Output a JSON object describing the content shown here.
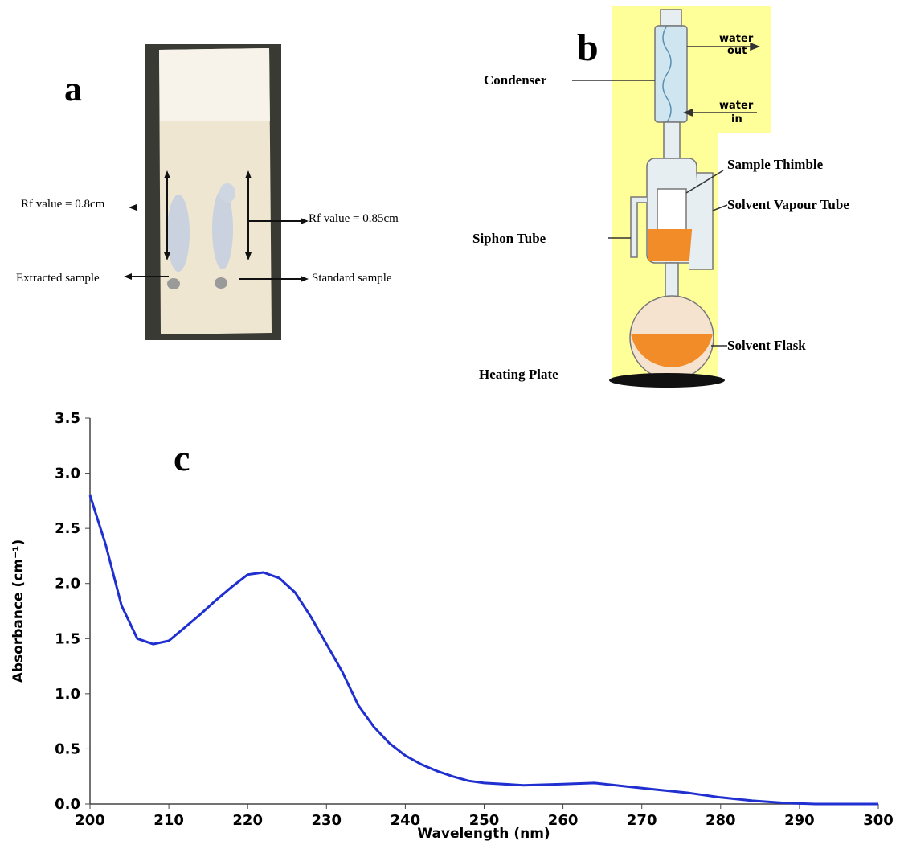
{
  "panels": {
    "a": {
      "label": "a",
      "rf_left": "Rf value = 0.8cm",
      "rf_right": "Rf value = 0.85cm",
      "extracted": "Extracted sample",
      "standard": "Standard sample"
    },
    "b": {
      "label": "b",
      "condenser": "Condenser",
      "water_out": [
        "water",
        "out"
      ],
      "water_in": [
        "water",
        "in"
      ],
      "sample_thimble": "Sample Thimble",
      "vapour_tube": "Solvent Vapour Tube",
      "siphon_tube": "Siphon Tube",
      "solvent_flask": "Solvent Flask",
      "heating_plate": "Heating Plate"
    }
  },
  "chart_data": {
    "type": "line",
    "panel_label": "c",
    "x_label": "Wavelength (nm)",
    "y_label": "Absorbance (cm⁻¹)",
    "color": "#1f2fd0",
    "x": [
      200,
      202,
      204,
      206,
      208,
      210,
      212,
      214,
      216,
      218,
      220,
      222,
      224,
      226,
      228,
      230,
      232,
      234,
      236,
      238,
      240,
      242,
      244,
      246,
      248,
      250,
      255,
      260,
      264,
      268,
      272,
      276,
      280,
      284,
      288,
      292,
      300
    ],
    "values": [
      2.8,
      2.35,
      1.8,
      1.5,
      1.45,
      1.48,
      1.6,
      1.72,
      1.85,
      1.97,
      2.08,
      2.1,
      2.05,
      1.92,
      1.7,
      1.45,
      1.2,
      0.9,
      0.7,
      0.55,
      0.44,
      0.36,
      0.3,
      0.25,
      0.21,
      0.19,
      0.17,
      0.18,
      0.19,
      0.16,
      0.13,
      0.1,
      0.06,
      0.03,
      0.01,
      0,
      0
    ],
    "xlim": [
      200,
      300
    ],
    "ylim": [
      0,
      3.5
    ],
    "xticks": [
      200,
      210,
      220,
      230,
      240,
      250,
      260,
      270,
      280,
      290,
      300
    ],
    "yticks": [
      {
        "value": 0,
        "label": "0.0"
      },
      0.5,
      {
        "value": 1,
        "label": "1.0"
      },
      1.5,
      {
        "value": 2,
        "label": "2.0"
      },
      2.5,
      {
        "value": 3,
        "label": "3.0"
      },
      3.5
    ]
  }
}
